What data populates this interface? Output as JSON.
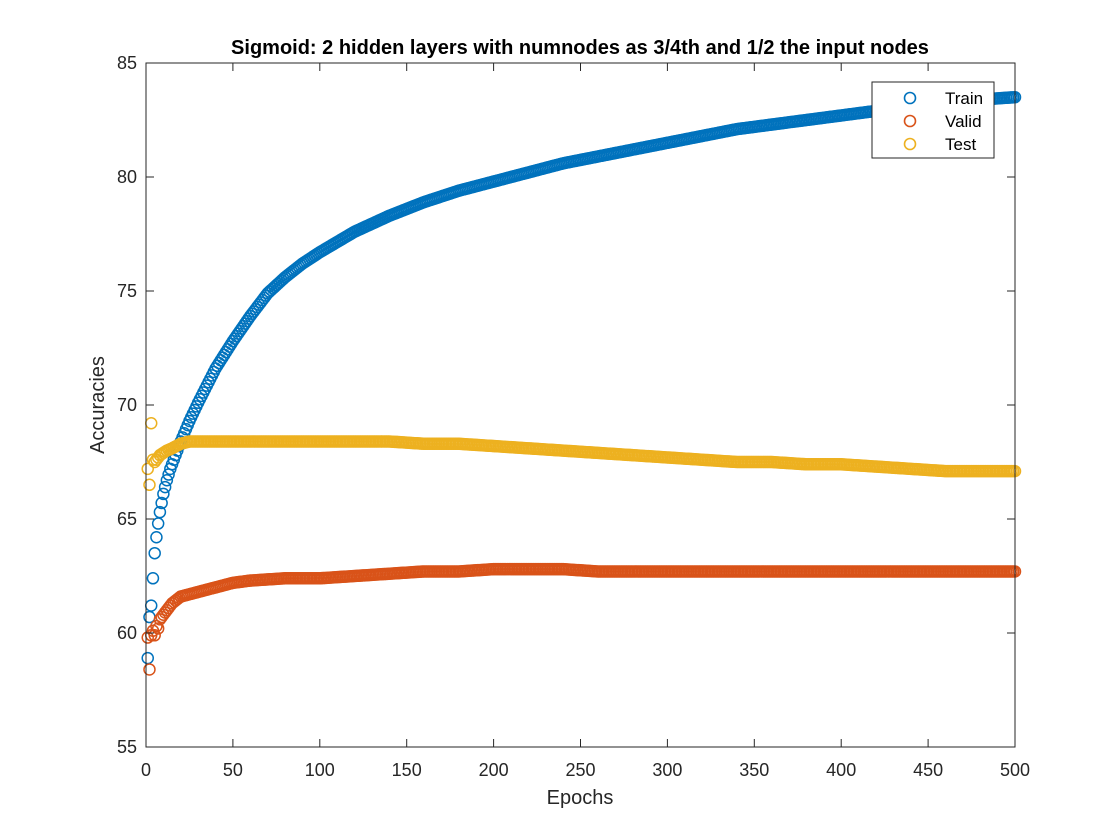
{
  "chart_data": {
    "type": "scatter",
    "title": "Sigmoid: 2 hidden layers with numnodes as 3/4th and 1/2 the input nodes",
    "xlabel": "Epochs",
    "ylabel": "Accuracies",
    "xlim": [
      0,
      500
    ],
    "ylim": [
      55,
      85
    ],
    "xticks": [
      0,
      50,
      100,
      150,
      200,
      250,
      300,
      350,
      400,
      450,
      500
    ],
    "yticks": [
      55,
      60,
      65,
      70,
      75,
      80,
      85
    ],
    "grid": false,
    "legend_position": "top-right",
    "series": [
      {
        "name": "Train",
        "color": "#0072BD",
        "marker": "circle-open",
        "x": [
          1,
          2,
          3,
          4,
          5,
          6,
          7,
          8,
          9,
          10,
          12,
          14,
          16,
          18,
          20,
          25,
          30,
          40,
          50,
          60,
          70,
          80,
          90,
          100,
          120,
          140,
          160,
          180,
          200,
          220,
          240,
          260,
          280,
          300,
          320,
          340,
          360,
          380,
          400,
          420,
          440,
          460,
          480,
          500
        ],
        "y": [
          58.9,
          60.7,
          61.2,
          62.4,
          63.5,
          64.2,
          64.8,
          65.3,
          65.7,
          66.1,
          66.7,
          67.2,
          67.6,
          68.0,
          68.4,
          69.3,
          70.1,
          71.6,
          72.8,
          73.9,
          74.9,
          75.6,
          76.2,
          76.7,
          77.6,
          78.3,
          78.9,
          79.4,
          79.8,
          80.2,
          80.6,
          80.9,
          81.2,
          81.5,
          81.8,
          82.1,
          82.3,
          82.5,
          82.7,
          82.9,
          83.1,
          83.2,
          83.4,
          83.5
        ]
      },
      {
        "name": "Valid",
        "color": "#D95319",
        "marker": "circle-open",
        "x": [
          1,
          2,
          3,
          4,
          5,
          6,
          7,
          8,
          10,
          12,
          15,
          20,
          25,
          30,
          40,
          50,
          60,
          80,
          100,
          120,
          140,
          160,
          180,
          200,
          220,
          240,
          260,
          280,
          300,
          320,
          340,
          360,
          380,
          400,
          420,
          440,
          460,
          480,
          500
        ],
        "y": [
          59.8,
          58.4,
          59.9,
          60.1,
          59.9,
          60.3,
          60.2,
          60.6,
          60.8,
          61.0,
          61.3,
          61.6,
          61.7,
          61.8,
          62.0,
          62.2,
          62.3,
          62.4,
          62.4,
          62.5,
          62.6,
          62.7,
          62.7,
          62.8,
          62.8,
          62.8,
          62.7,
          62.7,
          62.7,
          62.7,
          62.7,
          62.7,
          62.7,
          62.7,
          62.7,
          62.7,
          62.7,
          62.7,
          62.7
        ]
      },
      {
        "name": "Test",
        "color": "#EDB120",
        "marker": "circle-open",
        "x": [
          1,
          2,
          3,
          4,
          5,
          6,
          7,
          8,
          10,
          12,
          15,
          20,
          25,
          30,
          40,
          50,
          60,
          80,
          100,
          120,
          140,
          160,
          180,
          200,
          220,
          240,
          260,
          280,
          300,
          320,
          340,
          360,
          380,
          400,
          420,
          440,
          460,
          480,
          500
        ],
        "y": [
          67.2,
          66.5,
          69.2,
          67.6,
          67.5,
          67.6,
          67.7,
          67.8,
          67.9,
          68.0,
          68.1,
          68.3,
          68.4,
          68.4,
          68.4,
          68.4,
          68.4,
          68.4,
          68.4,
          68.4,
          68.4,
          68.3,
          68.3,
          68.2,
          68.1,
          68.0,
          67.9,
          67.8,
          67.7,
          67.6,
          67.5,
          67.5,
          67.4,
          67.4,
          67.3,
          67.2,
          67.1,
          67.1,
          67.1
        ]
      }
    ]
  }
}
